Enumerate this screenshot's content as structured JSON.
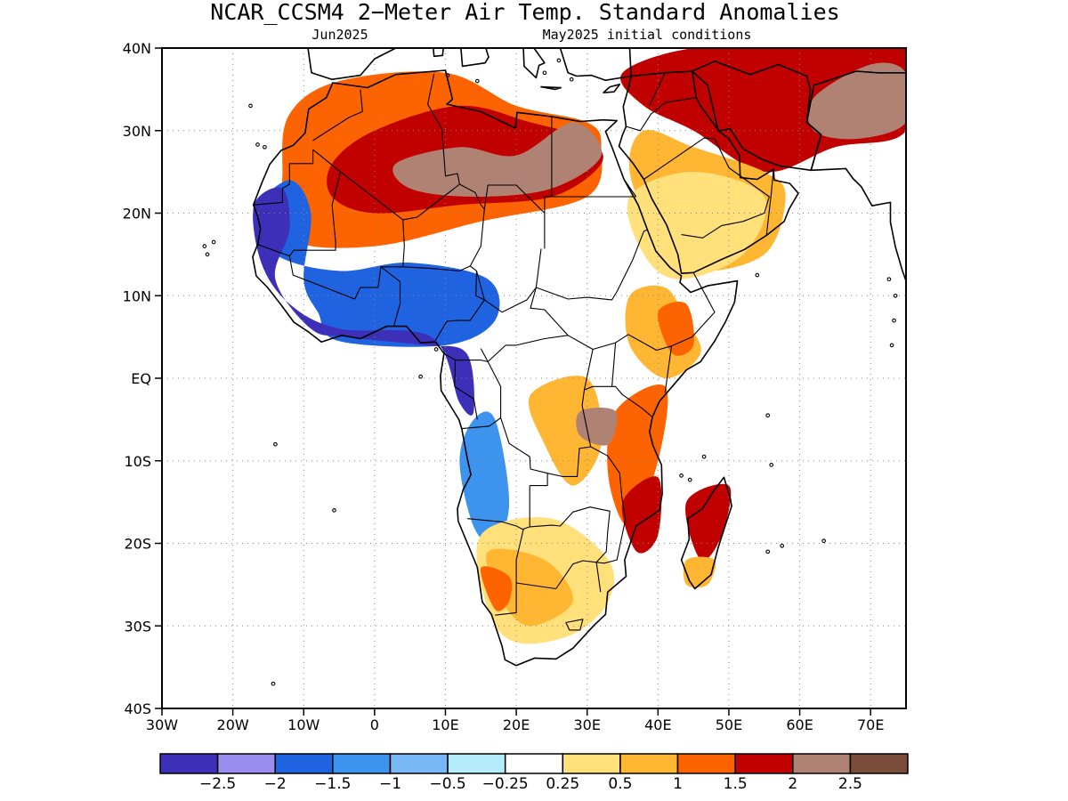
{
  "header": {
    "title": "NCAR_CCSM4 2−Meter Air Temp. Standard Anomalies",
    "subtitle_left": "Jun2025",
    "subtitle_right": "May2025 initial conditions"
  },
  "map": {
    "lon_range": [
      -30,
      75
    ],
    "lat_range": [
      -40,
      40
    ],
    "lat_ticks": [
      {
        "value": 40,
        "label": "40N"
      },
      {
        "value": 30,
        "label": "30N"
      },
      {
        "value": 20,
        "label": "20N"
      },
      {
        "value": 10,
        "label": "10N"
      },
      {
        "value": 0,
        "label": "EQ"
      },
      {
        "value": -10,
        "label": "10S"
      },
      {
        "value": -20,
        "label": "20S"
      },
      {
        "value": -30,
        "label": "30S"
      },
      {
        "value": -40,
        "label": "40S"
      }
    ],
    "lon_ticks": [
      {
        "value": -30,
        "label": "30W"
      },
      {
        "value": -20,
        "label": "20W"
      },
      {
        "value": -10,
        "label": "10W"
      },
      {
        "value": 0,
        "label": "0"
      },
      {
        "value": 10,
        "label": "10E"
      },
      {
        "value": 20,
        "label": "20E"
      },
      {
        "value": 30,
        "label": "30E"
      },
      {
        "value": 40,
        "label": "40E"
      },
      {
        "value": 50,
        "label": "50E"
      },
      {
        "value": 60,
        "label": "60E"
      },
      {
        "value": 70,
        "label": "70E"
      }
    ],
    "gridlines": "dotted",
    "colors": {
      "land_outline": "#000000",
      "gridline": "#888888"
    },
    "anomaly_regions": [
      {
        "level": 1.5,
        "points": [
          [
            -12,
            32
          ],
          [
            -5,
            36
          ],
          [
            10,
            37
          ],
          [
            20,
            33
          ],
          [
            30,
            31
          ],
          [
            32,
            28
          ],
          [
            30,
            22
          ],
          [
            15,
            19
          ],
          [
            0,
            16
          ],
          [
            -12,
            17
          ],
          [
            -13,
            25
          ]
        ]
      },
      {
        "level": 2,
        "points": [
          [
            -6,
            26
          ],
          [
            0,
            30
          ],
          [
            12,
            33
          ],
          [
            22,
            31
          ],
          [
            30,
            29
          ],
          [
            32,
            26
          ],
          [
            25,
            22
          ],
          [
            12,
            21
          ],
          [
            0,
            20
          ],
          [
            -6,
            22
          ]
        ]
      },
      {
        "level": 2.5,
        "points": [
          [
            3,
            26
          ],
          [
            12,
            28
          ],
          [
            20,
            27
          ],
          [
            28,
            31
          ],
          [
            32,
            27
          ],
          [
            25,
            23
          ],
          [
            14,
            22
          ],
          [
            5,
            23
          ]
        ]
      },
      {
        "level": 2,
        "points": [
          [
            35,
            37
          ],
          [
            45,
            40
          ],
          [
            60,
            40
          ],
          [
            75,
            40
          ],
          [
            75,
            30
          ],
          [
            65,
            28
          ],
          [
            55,
            25
          ],
          [
            45,
            30
          ],
          [
            38,
            33
          ]
        ]
      },
      {
        "level": 2.5,
        "points": [
          [
            62,
            34
          ],
          [
            70,
            38
          ],
          [
            75,
            37
          ],
          [
            75,
            31
          ],
          [
            68,
            29
          ],
          [
            62,
            30
          ]
        ]
      },
      {
        "level": 1,
        "points": [
          [
            38,
            30
          ],
          [
            45,
            28
          ],
          [
            55,
            25
          ],
          [
            58,
            22
          ],
          [
            55,
            15
          ],
          [
            45,
            13
          ],
          [
            40,
            17
          ],
          [
            36,
            25
          ]
        ]
      },
      {
        "level": 0.5,
        "points": [
          [
            36,
            22
          ],
          [
            45,
            25
          ],
          [
            55,
            22
          ],
          [
            52,
            15
          ],
          [
            43,
            12
          ],
          [
            38,
            15
          ]
        ]
      },
      {
        "level": -1.5,
        "points": [
          [
            -17,
            20
          ],
          [
            -12,
            24
          ],
          [
            -9,
            20
          ],
          [
            -10,
            12
          ],
          [
            -8,
            8
          ],
          [
            -5,
            4.5
          ],
          [
            10,
            4
          ],
          [
            17,
            7
          ],
          [
            16,
            12
          ],
          [
            5,
            14
          ],
          [
            -5,
            13
          ],
          [
            -14,
            15
          ]
        ]
      },
      {
        "level": -2.5,
        "points": [
          [
            -17,
            21
          ],
          [
            -13,
            23
          ],
          [
            -12,
            18
          ],
          [
            -14,
            12
          ],
          [
            -9,
            6
          ],
          [
            -4,
            5
          ],
          [
            7,
            4
          ],
          [
            13,
            3
          ],
          [
            14,
            -4
          ],
          [
            12,
            -3
          ],
          [
            8,
            5
          ],
          [
            -5,
            6
          ],
          [
            -12,
            9
          ],
          [
            -16,
            14
          ]
        ]
      },
      {
        "level": -1,
        "points": [
          [
            14,
            -5
          ],
          [
            17,
            -5
          ],
          [
            19,
            -15
          ],
          [
            17,
            -20
          ],
          [
            14,
            -18
          ],
          [
            12,
            -10
          ]
        ]
      },
      {
        "level": 1,
        "points": [
          [
            22,
            -2
          ],
          [
            30,
            0
          ],
          [
            32,
            -8
          ],
          [
            28,
            -13
          ],
          [
            24,
            -8
          ]
        ]
      },
      {
        "level": 1.5,
        "points": [
          [
            34,
            -4
          ],
          [
            41,
            -1
          ],
          [
            40,
            -10
          ],
          [
            36,
            -18
          ],
          [
            33,
            -12
          ]
        ]
      },
      {
        "level": 2,
        "points": [
          [
            35,
            -15
          ],
          [
            40,
            -12
          ],
          [
            40,
            -19
          ],
          [
            37,
            -21
          ]
        ]
      },
      {
        "level": 2.5,
        "points": [
          [
            29,
            -4
          ],
          [
            34,
            -4
          ],
          [
            33,
            -8
          ],
          [
            29,
            -7
          ]
        ]
      },
      {
        "level": 2,
        "points": [
          [
            44,
            -15
          ],
          [
            50,
            -13
          ],
          [
            49,
            -19
          ],
          [
            46,
            -22
          ]
        ]
      },
      {
        "level": 1,
        "points": [
          [
            44,
            -22
          ],
          [
            48,
            -22
          ],
          [
            47,
            -25
          ],
          [
            44,
            -25
          ]
        ]
      },
      {
        "level": 0.5,
        "points": [
          [
            15,
            -19
          ],
          [
            25,
            -17
          ],
          [
            33,
            -22
          ],
          [
            33,
            -27
          ],
          [
            28,
            -31
          ],
          [
            20,
            -32
          ],
          [
            16,
            -28
          ]
        ]
      },
      {
        "level": 1,
        "points": [
          [
            16,
            -21
          ],
          [
            24,
            -22
          ],
          [
            28,
            -27
          ],
          [
            22,
            -30
          ],
          [
            18,
            -27
          ]
        ]
      },
      {
        "level": 1.5,
        "points": [
          [
            15,
            -23
          ],
          [
            19,
            -24
          ],
          [
            19,
            -27
          ],
          [
            17,
            -28
          ]
        ]
      },
      {
        "level": 1,
        "points": [
          [
            36,
            10
          ],
          [
            41,
            11
          ],
          [
            44,
            7
          ],
          [
            46,
            3
          ],
          [
            41,
            0
          ],
          [
            36,
            4
          ]
        ]
      },
      {
        "level": 1.5,
        "points": [
          [
            40,
            8
          ],
          [
            44,
            9
          ],
          [
            45,
            4
          ],
          [
            42,
            3
          ]
        ]
      }
    ]
  },
  "colorbar": {
    "colors": [
      "#3e2fb8",
      "#9b8cf0",
      "#1f63e0",
      "#3c94ef",
      "#78b7f5",
      "#b4ecfc",
      "#ffffff",
      "#ffe07a",
      "#ffb733",
      "#fd6300",
      "#c10000",
      "#b08273",
      "#7b4b3c"
    ],
    "labels": [
      "−2.5",
      "−2",
      "−1.5",
      "−1",
      "−0.5",
      "−0.25",
      "0.25",
      "0.5",
      "1",
      "1.5",
      "2",
      "2.5"
    ]
  }
}
